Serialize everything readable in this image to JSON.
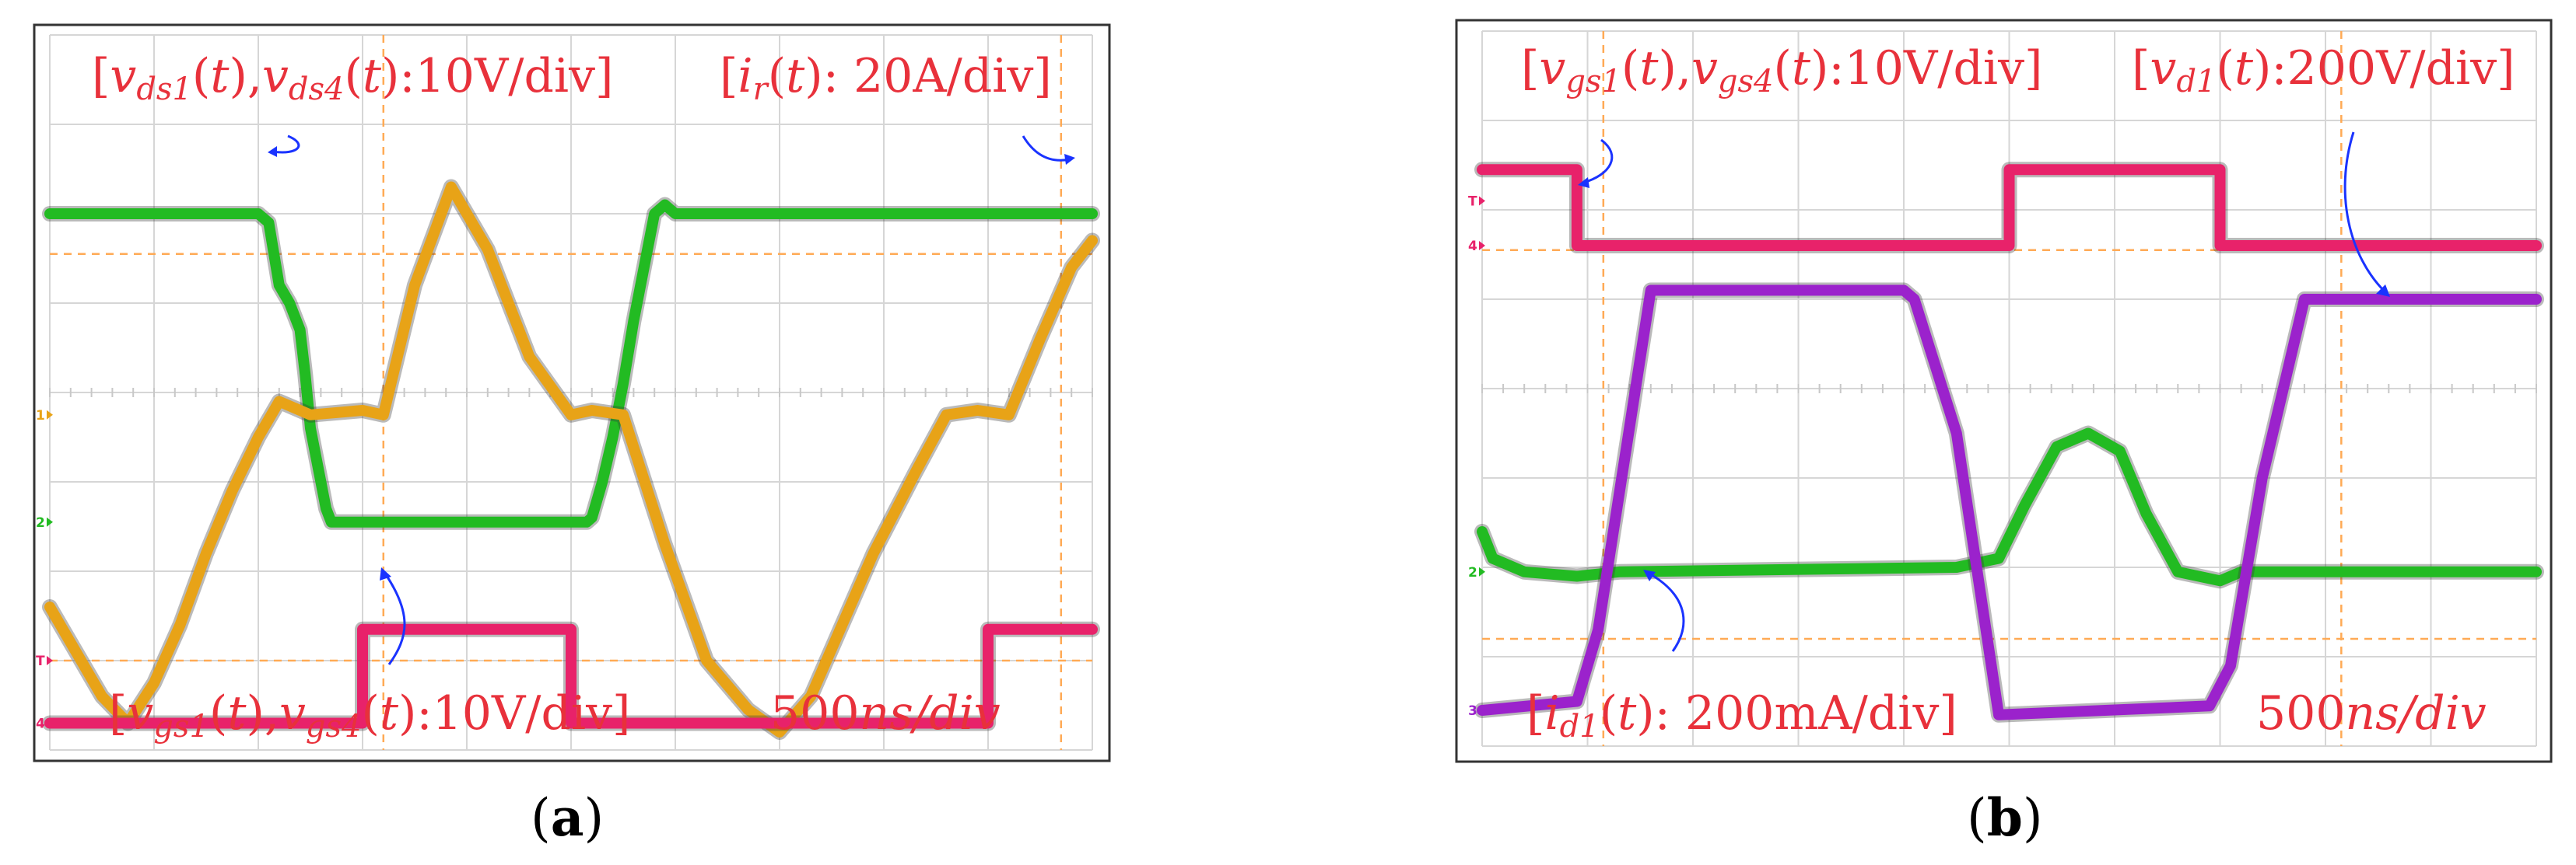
{
  "panels": [
    {
      "caption_letter": "a",
      "labels": {
        "top_left": "[v_ds1(t), v_ds4(t):10V/div]",
        "top_right": "[i_r(t): 20A/div]",
        "bottom_left": "[v_gs1(t), v_gs4(t):10V/div]",
        "bottom_right": "500ns/div"
      },
      "channel_markers": [
        "1",
        "2",
        "T",
        "4"
      ],
      "colors": {
        "ch1": "#e8a317",
        "ch2": "#22bb22",
        "ch4": "#e8226a"
      }
    },
    {
      "caption_letter": "b",
      "labels": {
        "top_left": "[v_gs1(t), v_gs4(t):10V/div]",
        "top_right": "[v_d1(t):200V/div]",
        "bottom_left": "[i_d1(t): 200mA/div]",
        "bottom_right": "500ns/div"
      },
      "channel_markers": [
        "T",
        "4",
        "2",
        "3"
      ],
      "colors": {
        "ch2": "#22bb22",
        "ch3": "#9b22cc",
        "ch4": "#e8226a"
      }
    }
  ],
  "chart_data": [
    {
      "type": "line",
      "panel": "a",
      "x_unit": "div",
      "time_per_div": "500ns/div",
      "xlim": [
        0,
        10
      ],
      "ylim": [
        0,
        8
      ],
      "grid": true,
      "series": [
        {
          "name": "v_ds1(t), v_ds4(t)",
          "color": "#22bb22",
          "x": [
            0,
            2.0,
            2.1,
            2.2,
            2.3,
            2.4,
            2.45,
            2.5,
            2.6,
            2.65,
            2.7,
            2.75,
            5.15,
            5.2,
            5.3,
            5.4,
            5.5,
            5.6,
            5.7,
            5.8,
            5.9,
            6.0,
            10
          ],
          "y": [
            6.0,
            6.0,
            5.9,
            5.2,
            5.0,
            4.7,
            4.2,
            3.6,
            3.0,
            2.7,
            2.55,
            2.55,
            2.55,
            2.6,
            3.0,
            3.5,
            4.1,
            4.8,
            5.4,
            6.0,
            6.1,
            6.0,
            6.0
          ]
        },
        {
          "name": "i_r(t)",
          "color": "#e8a317",
          "x": [
            0,
            0.25,
            0.5,
            0.75,
            1.0,
            1.25,
            1.5,
            1.75,
            2.0,
            2.2,
            2.5,
            3.0,
            3.2,
            3.5,
            3.85,
            4.2,
            4.6,
            5.0,
            5.2,
            5.5,
            5.9,
            6.3,
            6.7,
            7.0,
            7.3,
            7.6,
            7.9,
            8.3,
            8.6,
            8.9,
            9.2,
            9.5,
            9.8,
            10
          ],
          "y": [
            1.6,
            1.1,
            0.6,
            0.3,
            0.75,
            1.4,
            2.2,
            2.9,
            3.5,
            3.9,
            3.75,
            3.8,
            3.75,
            5.2,
            6.3,
            5.6,
            4.4,
            3.75,
            3.8,
            3.75,
            2.3,
            1.0,
            0.45,
            0.2,
            0.6,
            1.4,
            2.2,
            3.1,
            3.75,
            3.8,
            3.75,
            4.6,
            5.4,
            5.7
          ]
        },
        {
          "name": "v_gs1(t), v_gs4(t)",
          "color": "#e8226a",
          "x": [
            0,
            3.0,
            3.0,
            5.0,
            5.0,
            9.0,
            9.0,
            10
          ],
          "y": [
            0.3,
            0.3,
            1.35,
            1.35,
            0.3,
            0.3,
            1.35,
            1.35
          ]
        }
      ]
    },
    {
      "type": "line",
      "panel": "b",
      "x_unit": "div",
      "time_per_div": "500ns/div",
      "xlim": [
        0,
        10
      ],
      "ylim": [
        0,
        8
      ],
      "grid": true,
      "series": [
        {
          "name": "v_gs1(t), v_gs4(t)",
          "color": "#e8226a",
          "x": [
            0,
            0.9,
            0.9,
            5.0,
            5.0,
            7.0,
            7.0,
            10
          ],
          "y": [
            6.45,
            6.45,
            5.6,
            5.6,
            6.45,
            6.45,
            5.6,
            5.6
          ]
        },
        {
          "name": "v_d1(t)",
          "color": "#22bb22",
          "x": [
            0,
            0.1,
            0.4,
            0.9,
            1.3,
            4.5,
            4.9,
            5.15,
            5.45,
            5.75,
            6.05,
            6.3,
            6.6,
            7.0,
            7.2,
            10
          ],
          "y": [
            2.4,
            2.1,
            1.95,
            1.9,
            1.95,
            2.0,
            2.1,
            2.7,
            3.35,
            3.5,
            3.3,
            2.6,
            1.95,
            1.85,
            1.95,
            1.95
          ]
        },
        {
          "name": "i_d1(t)",
          "color": "#9b22cc",
          "x": [
            0,
            0.9,
            1.1,
            1.6,
            4.0,
            4.1,
            4.5,
            4.9,
            6.9,
            7.1,
            7.4,
            7.8,
            10
          ],
          "y": [
            0.4,
            0.5,
            1.3,
            5.1,
            5.1,
            5.0,
            3.5,
            0.35,
            0.45,
            0.9,
            3.0,
            5.0,
            5.0
          ]
        }
      ]
    }
  ]
}
